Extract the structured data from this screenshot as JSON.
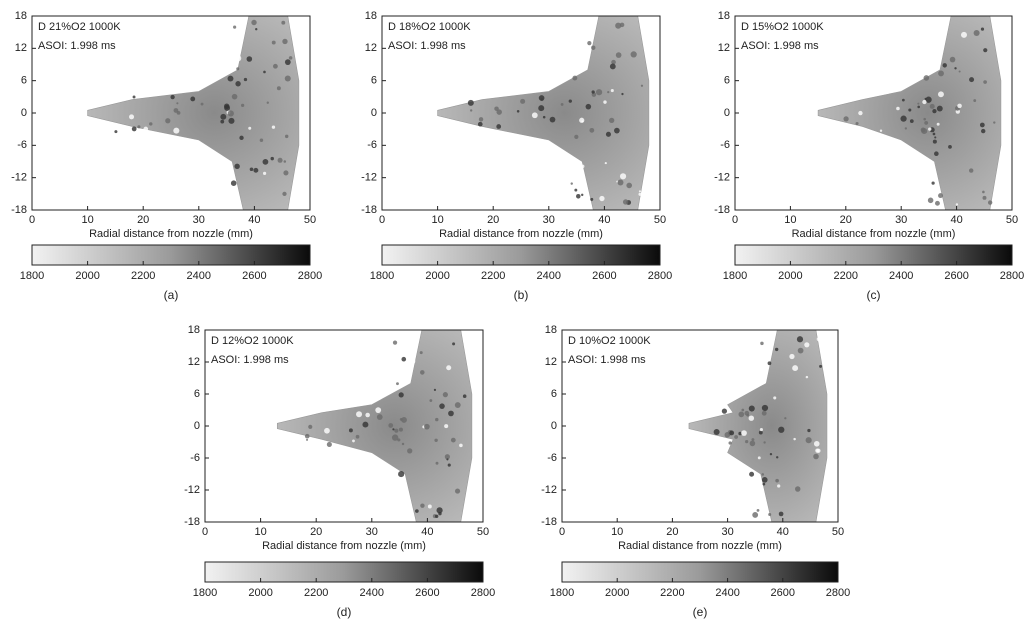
{
  "axes": {
    "xlim": [
      0,
      50
    ],
    "ylim": [
      -18,
      18
    ],
    "xticks": [
      0,
      10,
      20,
      30,
      40,
      50
    ],
    "yticks": [
      18,
      12,
      6,
      0,
      -6,
      -12,
      -18
    ],
    "x_label": "Radial distance from nozzle (mm)",
    "colorbar": {
      "lim": [
        1800,
        2800
      ],
      "ticks": [
        1800,
        2000,
        2200,
        2400,
        2600,
        2800
      ]
    }
  },
  "panels": [
    {
      "label": "D 21%O2 1000K",
      "asoi": "ASOI: 1.998 ms",
      "caption": "(a)"
    },
    {
      "label": "D 18%O2 1000K",
      "asoi": "ASOI: 1.998 ms",
      "caption": "(b)"
    },
    {
      "label": "D 15%O2 1000K",
      "asoi": "ASOI: 1.998 ms",
      "caption": "(c)"
    },
    {
      "label": "D 12%O2 1000K",
      "asoi": "ASOI: 1.998 ms",
      "caption": "(d)"
    },
    {
      "label": "D 10%O2 1000K",
      "asoi": "ASOI: 1.998 ms",
      "caption": "(e)"
    }
  ]
}
